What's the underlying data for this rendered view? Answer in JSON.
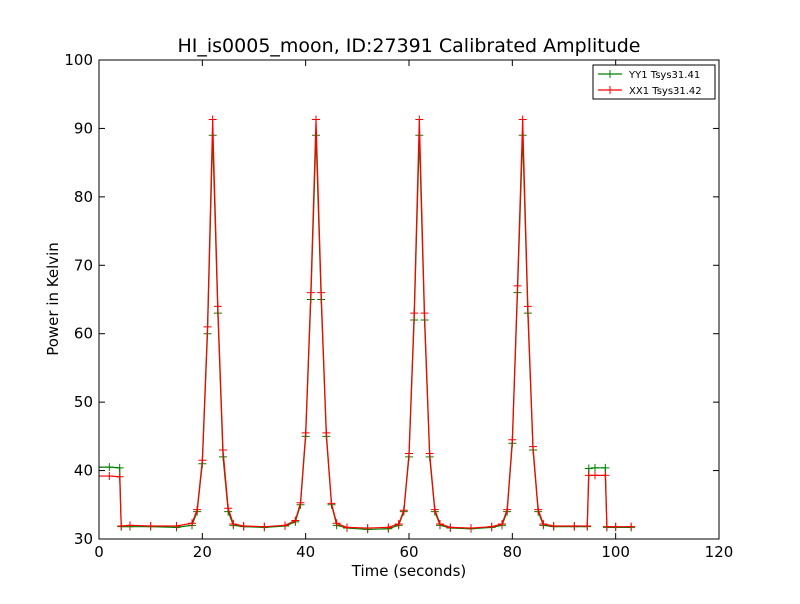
{
  "chart_data": {
    "type": "line",
    "title": "HI_is0005_moon, ID:27391 Calibrated Amplitude",
    "xlabel": "Time (seconds)",
    "ylabel": "Power in Kelvin",
    "xlim": [
      0,
      120
    ],
    "ylim": [
      30,
      100
    ],
    "xticks": [
      0,
      20,
      40,
      60,
      80,
      100,
      120
    ],
    "yticks": [
      30,
      40,
      50,
      60,
      70,
      80,
      90,
      100
    ],
    "grid": false,
    "legend_position": "top-right",
    "marker": "plus",
    "series": [
      {
        "name": "YY1 Tsys31.41",
        "color": "#008000",
        "x": [
          0,
          2,
          4,
          4.3,
          6,
          10,
          15,
          18,
          19,
          20,
          21,
          22,
          23,
          24,
          25,
          26,
          28,
          32,
          36,
          38,
          39,
          40,
          41,
          42,
          43,
          44,
          45,
          46,
          48,
          52,
          56,
          58,
          59,
          60,
          61,
          62,
          63,
          64,
          65,
          66,
          68,
          72,
          76,
          78,
          79,
          80,
          81,
          82,
          83,
          84,
          85,
          86,
          88,
          92,
          94.5,
          94.8,
          96,
          98,
          98.3,
          100,
          103
        ],
        "y": [
          40.5,
          40.5,
          40.4,
          31.8,
          31.8,
          31.8,
          31.7,
          32,
          34,
          41,
          60,
          89,
          63,
          42,
          34,
          32,
          31.8,
          31.7,
          31.9,
          32.5,
          35,
          45,
          65,
          89,
          65,
          45,
          35,
          32,
          31.6,
          31.4,
          31.5,
          32,
          34,
          42,
          62,
          89,
          62,
          42,
          34,
          32,
          31.6,
          31.5,
          31.7,
          32,
          34,
          44,
          66,
          89,
          63,
          43,
          34,
          32,
          31.8,
          31.8,
          31.8,
          40.3,
          40.4,
          40.4,
          31.7,
          31.7,
          31.7
        ]
      },
      {
        "name": "XX1 Tsys31.42",
        "color": "#ff0000",
        "x": [
          0,
          2,
          4,
          4.3,
          6,
          10,
          15,
          18,
          19,
          20,
          21,
          22,
          23,
          24,
          25,
          26,
          28,
          32,
          36,
          38,
          39,
          40,
          41,
          42,
          43,
          44,
          45,
          46,
          48,
          52,
          56,
          58,
          59,
          60,
          61,
          62,
          63,
          64,
          65,
          66,
          68,
          72,
          76,
          78,
          79,
          80,
          81,
          82,
          83,
          84,
          85,
          86,
          88,
          92,
          94.5,
          94.8,
          96,
          98,
          98.3,
          100,
          103
        ],
        "y": [
          39.2,
          39.2,
          39.1,
          31.9,
          32,
          31.9,
          31.9,
          32.3,
          34.3,
          41.5,
          61,
          91.3,
          64,
          43,
          34.5,
          32.2,
          31.9,
          31.8,
          32,
          32.7,
          35.3,
          45.5,
          66,
          91.3,
          66,
          45.5,
          35.2,
          32.3,
          31.7,
          31.6,
          31.7,
          32.2,
          34.2,
          42.5,
          63,
          91.3,
          63,
          42.5,
          34.3,
          32.2,
          31.7,
          31.6,
          31.8,
          32.2,
          34.3,
          44.5,
          67,
          91.3,
          64,
          43.5,
          34.3,
          32.2,
          31.9,
          31.9,
          31.9,
          39.3,
          39.3,
          39.3,
          31.8,
          31.8,
          31.8
        ]
      }
    ]
  }
}
